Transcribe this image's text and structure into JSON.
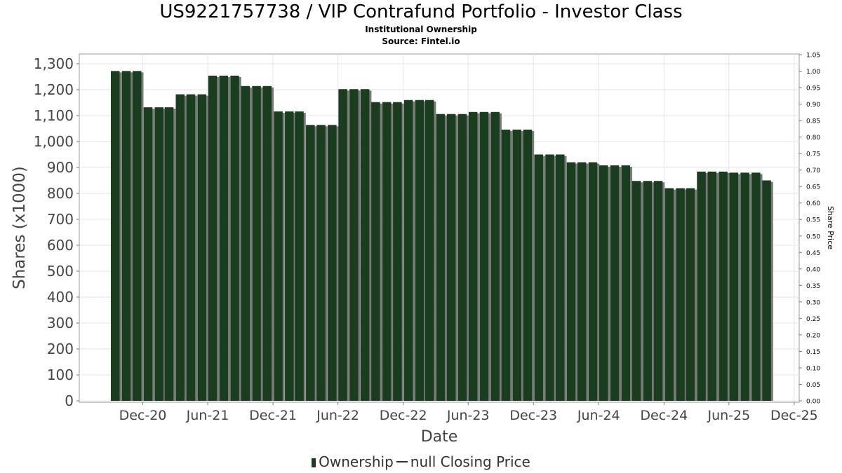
{
  "header": {
    "title": "US9221757738 / VIP Contrafund Portfolio - Investor Class",
    "subtitle": "Institutional Ownership",
    "source": "Source: Fintel.io"
  },
  "legend": {
    "ownership": "Ownership",
    "price": "null Closing Price"
  },
  "colors": {
    "bar": "#1a3d1f",
    "bar_shadow": "#7a7a7a",
    "grid": "#e6e6e6"
  },
  "chart_data": {
    "type": "bar",
    "title": "US9221757738 / VIP Contrafund Portfolio - Investor Class",
    "xlabel": "Date",
    "ylabel": "Shares (x1000)",
    "y2label": "Share Price",
    "ylim": [
      0,
      1335
    ],
    "y2lim": [
      0,
      1.05
    ],
    "x_range": [
      "2020-06-06",
      "2025-12-15"
    ],
    "grid": true,
    "legend_position": "bottom",
    "y_ticks": [
      "0",
      "100",
      "200",
      "300",
      "400",
      "500",
      "600",
      "700",
      "800",
      "900",
      "1,000",
      "1,100",
      "1,200",
      "1,300"
    ],
    "y2_ticks": [
      "0.00",
      "0.05",
      "0.10",
      "0.15",
      "0.20",
      "0.25",
      "0.30",
      "0.35",
      "0.40",
      "0.45",
      "0.50",
      "0.55",
      "0.60",
      "0.65",
      "0.70",
      "0.75",
      "0.80",
      "0.85",
      "0.90",
      "0.95",
      "1.00",
      "1.05"
    ],
    "x_ticks": [
      "Dec-20",
      "Jun-21",
      "Dec-21",
      "Jun-22",
      "Dec-22",
      "Jun-23",
      "Dec-23",
      "Jun-24",
      "Dec-24",
      "Jun-25",
      "Dec-25"
    ],
    "series": [
      {
        "name": "Ownership",
        "x": [
          "2020-09-30",
          "2020-10-31",
          "2020-11-30",
          "2020-12-31",
          "2021-01-31",
          "2021-02-28",
          "2021-03-31",
          "2021-04-30",
          "2021-05-31",
          "2021-06-30",
          "2021-07-31",
          "2021-08-31",
          "2021-09-30",
          "2021-10-31",
          "2021-11-30",
          "2021-12-31",
          "2022-01-31",
          "2022-02-28",
          "2022-03-31",
          "2022-04-30",
          "2022-05-31",
          "2022-06-30",
          "2022-07-31",
          "2022-08-31",
          "2022-09-30",
          "2022-10-31",
          "2022-11-30",
          "2022-12-31",
          "2023-01-31",
          "2023-02-28",
          "2023-03-31",
          "2023-04-30",
          "2023-05-31",
          "2023-06-30",
          "2023-07-31",
          "2023-08-31",
          "2023-09-30",
          "2023-10-31",
          "2023-11-30",
          "2023-12-31",
          "2024-01-31",
          "2024-02-29",
          "2024-03-31",
          "2024-04-30",
          "2024-05-31",
          "2024-06-30",
          "2024-07-31",
          "2024-08-31",
          "2024-09-30",
          "2024-10-31",
          "2024-11-30",
          "2024-12-31",
          "2025-01-31",
          "2025-02-28",
          "2025-03-31",
          "2025-04-30",
          "2025-05-31",
          "2025-06-30",
          "2025-07-31",
          "2025-08-31",
          "2025-09-30"
        ],
        "values": [
          1272,
          1272,
          1272,
          1132,
          1132,
          1132,
          1182,
          1182,
          1182,
          1254,
          1254,
          1254,
          1214,
          1214,
          1214,
          1116,
          1116,
          1116,
          1064,
          1064,
          1064,
          1202,
          1202,
          1202,
          1152,
          1152,
          1152,
          1160,
          1160,
          1160,
          1106,
          1106,
          1106,
          1114,
          1114,
          1114,
          1046,
          1046,
          1046,
          950,
          950,
          950,
          920,
          920,
          920,
          908,
          908,
          908,
          848,
          848,
          848,
          820,
          820,
          820,
          884,
          884,
          884,
          880,
          880,
          880,
          850
        ]
      }
    ]
  }
}
